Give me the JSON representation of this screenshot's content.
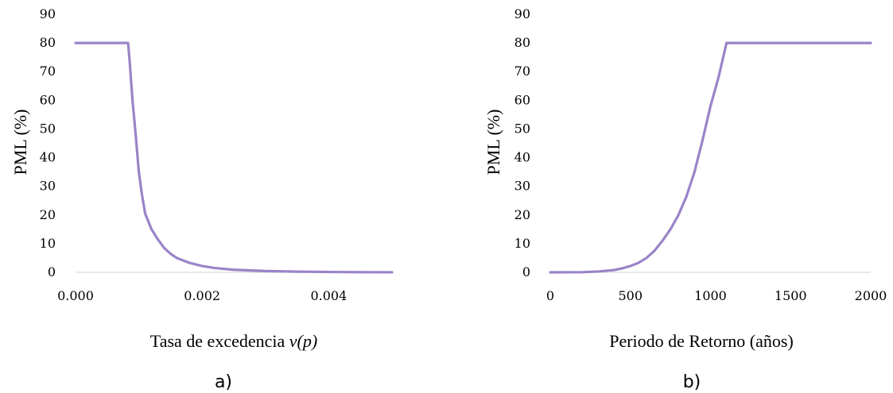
{
  "chart_data": [
    {
      "type": "line",
      "panel_label": "a)",
      "ylabel": "PML (%)",
      "xlabel_prefix": "Tasa de excedencia ",
      "xlabel_italic": "ν(p)",
      "ylim": [
        0,
        90
      ],
      "xlim": [
        0,
        0.005
      ],
      "yticks": [
        "0",
        "10",
        "20",
        "30",
        "40",
        "50",
        "60",
        "70",
        "80",
        "90"
      ],
      "xticks": [
        {
          "value": 0,
          "label": "0.000"
        },
        {
          "value": 0.002,
          "label": "0.002"
        },
        {
          "value": 0.004,
          "label": "0.004"
        }
      ],
      "grid": false,
      "series": [
        {
          "color": "#9a84c8",
          "x": [
            0,
            0.00083,
            0.00085,
            0.0009,
            0.00095,
            0.001,
            0.00105,
            0.0011,
            0.0012,
            0.0013,
            0.0014,
            0.0015,
            0.0016,
            0.0018,
            0.002,
            0.0022,
            0.0025,
            0.003,
            0.0035,
            0.004,
            0.0045,
            0.005
          ],
          "y": [
            80,
            80,
            75,
            60,
            48,
            35,
            27,
            20.5,
            15,
            11.5,
            8.5,
            6.5,
            5,
            3.3,
            2.2,
            1.5,
            0.9,
            0.45,
            0.25,
            0.12,
            0.05,
            0.02
          ]
        }
      ]
    },
    {
      "type": "line",
      "panel_label": "b)",
      "ylabel": "PML (%)",
      "xlabel": "Periodo de Retorno (años)",
      "ylim": [
        0,
        90
      ],
      "xlim": [
        0,
        2000
      ],
      "yticks": [
        "0",
        "10",
        "20",
        "30",
        "40",
        "50",
        "60",
        "70",
        "80",
        "90"
      ],
      "xticks": [
        {
          "value": 0,
          "label": "0"
        },
        {
          "value": 500,
          "label": "500"
        },
        {
          "value": 1000,
          "label": "1000"
        },
        {
          "value": 1500,
          "label": "1500"
        },
        {
          "value": 2000,
          "label": "2000"
        }
      ],
      "grid": false,
      "series": [
        {
          "color": "#9a84c8",
          "x": [
            0,
            200,
            300,
            400,
            450,
            500,
            550,
            600,
            650,
            700,
            750,
            800,
            850,
            900,
            950,
            1000,
            1050,
            1100,
            1150,
            1190,
            1300,
            1500,
            1700,
            2000
          ],
          "y": [
            0,
            0.05,
            0.3,
            0.8,
            1.4,
            2.2,
            3.3,
            5,
            7.5,
            11,
            15,
            20,
            26.5,
            35,
            46,
            58,
            68,
            80,
            80,
            80,
            80,
            80,
            80,
            80
          ]
        }
      ]
    }
  ]
}
